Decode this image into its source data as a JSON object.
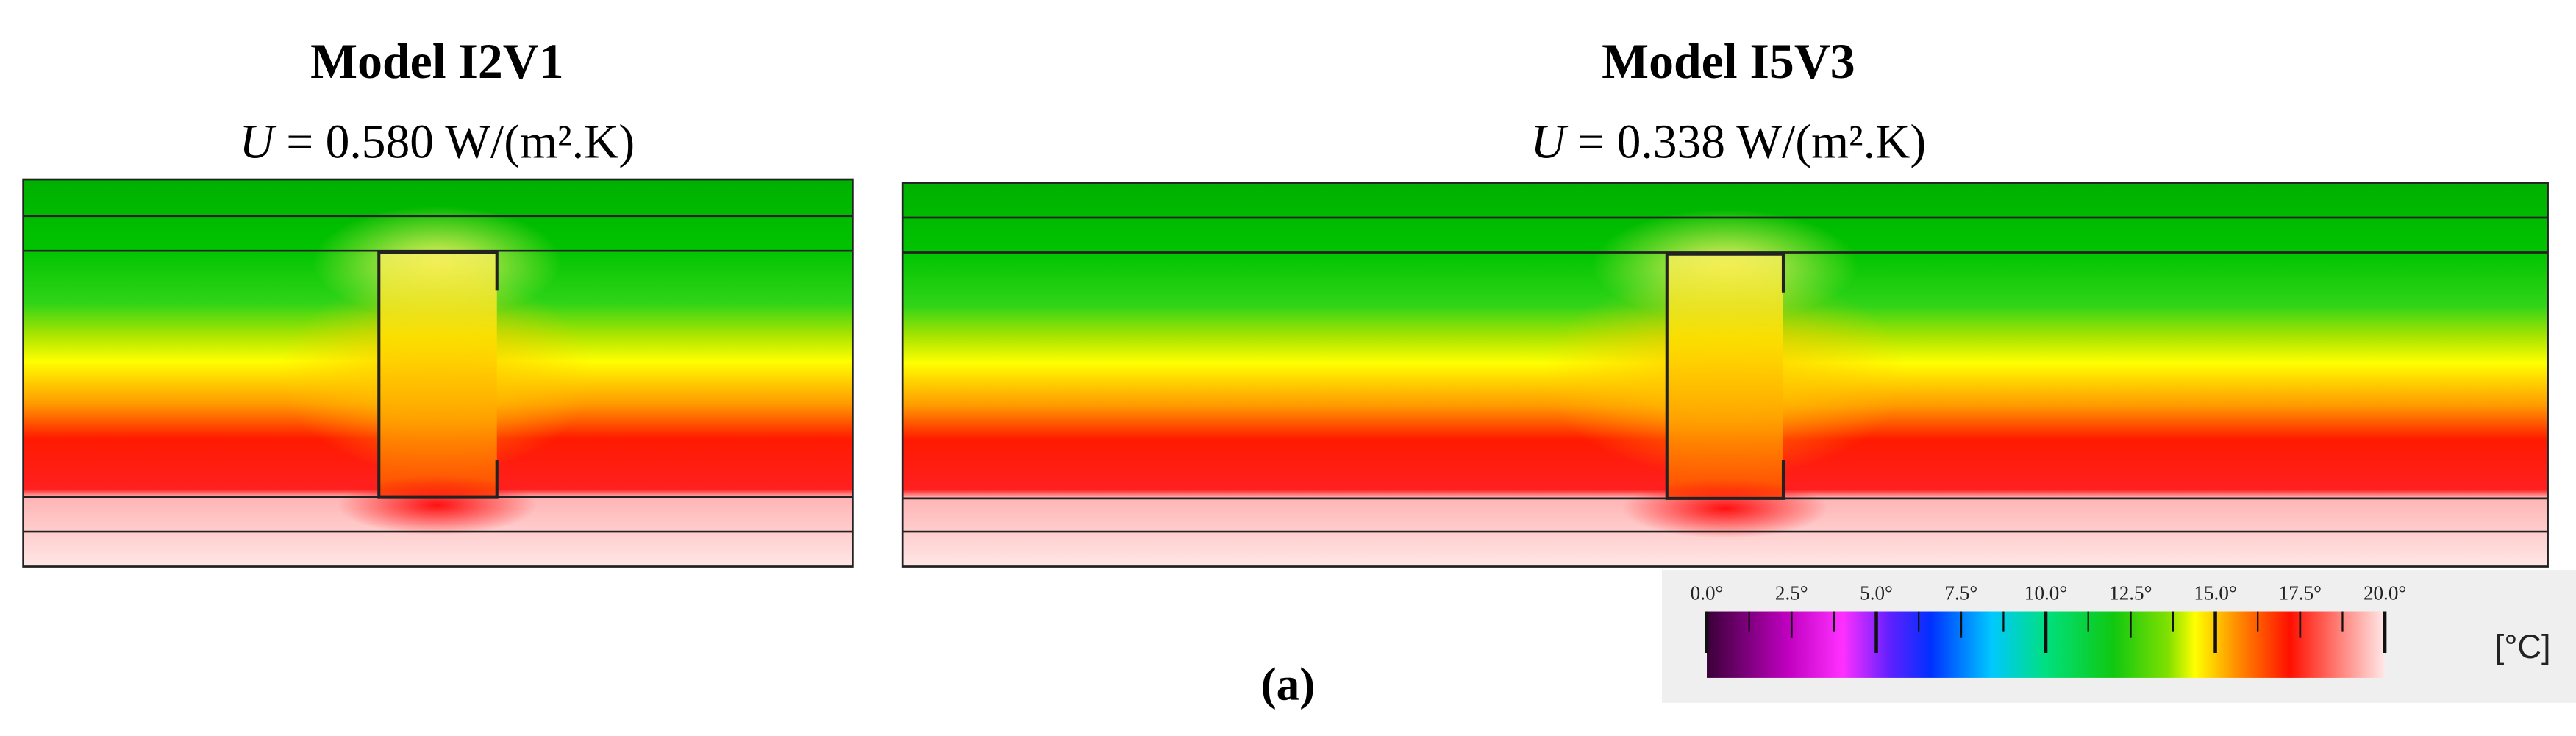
{
  "panels": [
    {
      "title": "Model I2V1",
      "u_symbol": "U",
      "u_value": " = 0.580 W/(m².K)"
    },
    {
      "title": "Model I5V3",
      "u_symbol": "U",
      "u_value": " = 0.338 W/(m².K)"
    }
  ],
  "colorbar": {
    "tick_labels": [
      "0.0°",
      "2.5°",
      "5.0°",
      "7.5°",
      "10.0°",
      "12.5°",
      "15.0°",
      "17.5°",
      "20.0°"
    ],
    "unit": "[°C]"
  },
  "caption": "(a)"
}
